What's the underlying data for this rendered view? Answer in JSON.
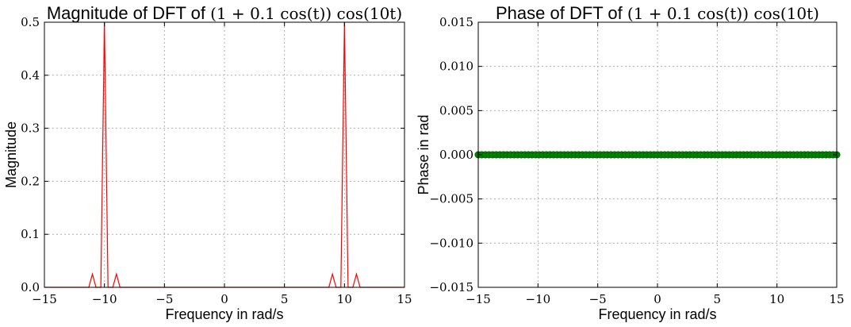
{
  "chart_data": [
    {
      "type": "line",
      "title_prefix": "Magnitude of DFT of ",
      "title_math": "(1 + 0.1 cos(t)) cos(10t)",
      "xlabel": "Frequency in rad/s",
      "ylabel": "Magnitude",
      "xlim": [
        -15,
        15
      ],
      "ylim": [
        0,
        0.5
      ],
      "xticks": [
        "−15",
        "−10",
        "−5",
        "0",
        "5",
        "10",
        "15"
      ],
      "yticks": [
        "0.0",
        "0.1",
        "0.2",
        "0.3",
        "0.4",
        "0.5"
      ],
      "grid": true,
      "series": [
        {
          "color": "#ff0000",
          "x": [
            -15,
            -11.3,
            -11,
            -10.7,
            -10.3,
            -10,
            -9.7,
            -9.3,
            -9,
            -8.7,
            8.7,
            9,
            9.3,
            9.7,
            10,
            10.3,
            10.7,
            11,
            11.3,
            15
          ],
          "y": [
            0,
            0,
            0.025,
            0,
            0,
            0.5,
            0,
            0,
            0.025,
            0,
            0,
            0.025,
            0,
            0,
            0.5,
            0,
            0,
            0.025,
            0,
            0
          ]
        }
      ]
    },
    {
      "type": "scatter",
      "title_prefix": "Phase of DFT of ",
      "title_math": "(1 + 0.1 cos(t)) cos(10t)",
      "xlabel": "Frequency in rad/s",
      "ylabel": "Phase in rad",
      "xlim": [
        -15,
        15
      ],
      "ylim": [
        -0.015,
        0.015
      ],
      "xticks": [
        "−15",
        "−10",
        "−5",
        "0",
        "5",
        "10",
        "15"
      ],
      "yticks": [
        "−0.015",
        "−0.010",
        "−0.005",
        "0.000",
        "0.005",
        "0.010",
        "0.015"
      ],
      "grid": true,
      "series": [
        {
          "color": "#008000",
          "marker": "circle",
          "x_start": -15,
          "x_end": 15,
          "x_step": 0.3,
          "y_constant": 0
        }
      ]
    }
  ]
}
